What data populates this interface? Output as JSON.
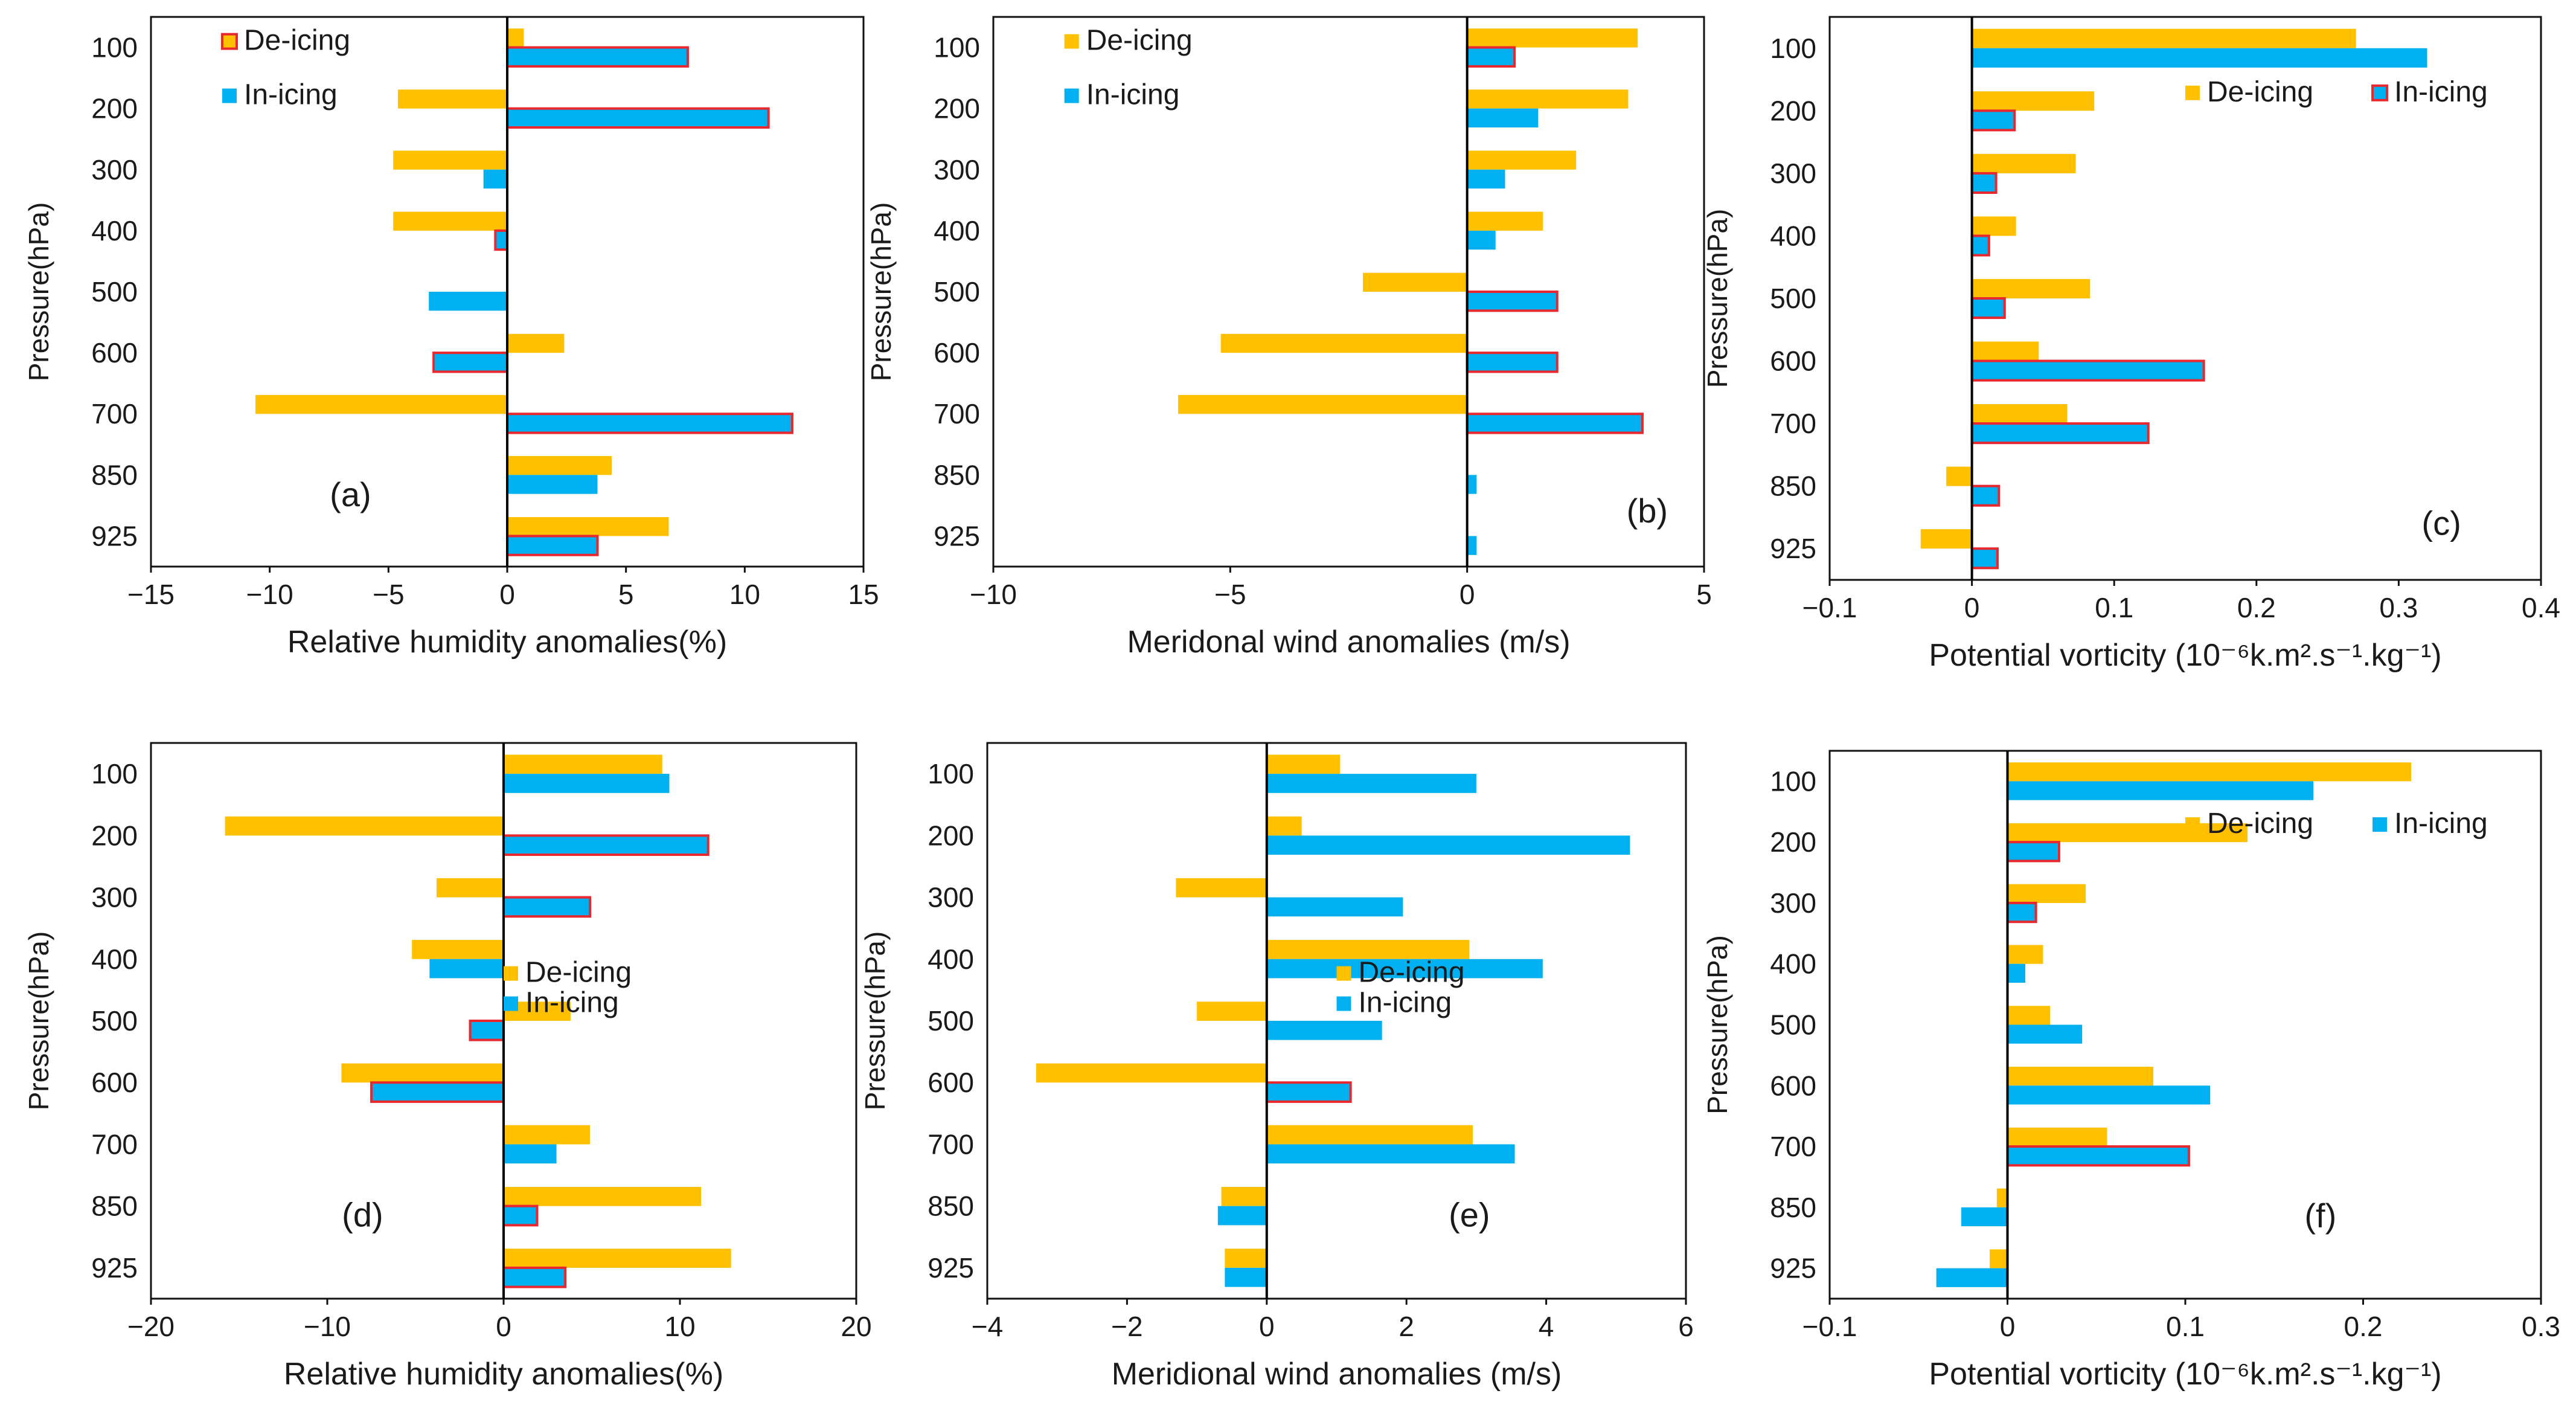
{
  "colors": {
    "de_icing": "#FFC000",
    "in_icing": "#00B0F0",
    "highlight_border": "#E8282E"
  },
  "chart_data": [
    {
      "type": "bar",
      "orientation": "horizontal",
      "panel_label": "(a)",
      "xlabel": "Relative humidity anomalies(%)",
      "ylabel": "Pressure(hPa)",
      "categories": [
        "100",
        "200",
        "300",
        "400",
        "500",
        "600",
        "700",
        "850",
        "925"
      ],
      "xlim": [
        -15,
        15
      ],
      "xticks": [
        -15,
        -10,
        -5,
        0,
        5,
        10,
        15
      ],
      "xtick_labels": [
        "−15",
        "−10",
        "−5",
        "0",
        "5",
        "10",
        "15"
      ],
      "legend_position": "top-left",
      "legend_marker_border": {
        "De-icing": true,
        "In-icing": false
      },
      "series": [
        {
          "name": "De-icing",
          "values": [
            0.7,
            -4.6,
            -4.8,
            -4.8,
            0,
            2.4,
            -10.6,
            4.4,
            6.8
          ],
          "highlight": [
            false,
            false,
            false,
            false,
            false,
            false,
            false,
            false,
            false
          ]
        },
        {
          "name": "In-icing",
          "values": [
            7.6,
            11.0,
            -1.0,
            -0.5,
            -3.3,
            -3.1,
            12.0,
            3.8,
            3.8
          ],
          "highlight": [
            true,
            true,
            false,
            true,
            false,
            true,
            true,
            false,
            true
          ]
        }
      ]
    },
    {
      "type": "bar",
      "orientation": "horizontal",
      "panel_label": "(b)",
      "xlabel": "Meridonal wind anomalies (m/s)",
      "ylabel": "Pressure(hPa)",
      "categories": [
        "100",
        "200",
        "300",
        "400",
        "500",
        "600",
        "700",
        "850",
        "925"
      ],
      "xlim": [
        -10,
        5
      ],
      "xticks": [
        -10,
        -5,
        0,
        5
      ],
      "xtick_labels": [
        "−10",
        "−5",
        "0",
        "5"
      ],
      "legend_position": "top-left",
      "legend_marker_border": {
        "De-icing": false,
        "In-icing": false
      },
      "series": [
        {
          "name": "De-icing",
          "values": [
            3.6,
            3.4,
            2.3,
            1.6,
            -2.2,
            -5.2,
            -6.1,
            0,
            0
          ],
          "highlight": [
            false,
            false,
            false,
            false,
            false,
            false,
            false,
            false,
            false
          ]
        },
        {
          "name": "In-icing",
          "values": [
            1.0,
            1.5,
            0.8,
            0.6,
            1.9,
            1.9,
            3.7,
            0.2,
            0.2
          ],
          "highlight": [
            true,
            false,
            false,
            false,
            true,
            true,
            true,
            false,
            false
          ]
        }
      ]
    },
    {
      "type": "bar",
      "orientation": "horizontal",
      "panel_label": "(c)",
      "xlabel": "Potential vorticity (10⁻⁶k.m².s⁻¹.kg⁻¹)",
      "ylabel": "Pressure(hPa)",
      "categories": [
        "100",
        "200",
        "300",
        "400",
        "500",
        "600",
        "700",
        "850",
        "925"
      ],
      "xlim": [
        -0.1,
        0.4
      ],
      "xticks": [
        -0.1,
        0,
        0.1,
        0.2,
        0.3,
        0.4
      ],
      "xtick_labels": [
        "−0.1",
        "0",
        "0.1",
        "0.2",
        "0.3",
        "0.4"
      ],
      "legend_position": "top-right",
      "legend_marker_border": {
        "De-icing": false,
        "In-icing": true
      },
      "series": [
        {
          "name": "De-icing",
          "values": [
            0.27,
            0.086,
            0.073,
            0.031,
            0.083,
            0.047,
            0.067,
            -0.018,
            -0.036
          ],
          "highlight": [
            false,
            false,
            false,
            false,
            false,
            false,
            false,
            false,
            false
          ]
        },
        {
          "name": "In-icing",
          "values": [
            0.32,
            0.03,
            0.017,
            0.012,
            0.023,
            0.163,
            0.124,
            0.019,
            0.018
          ],
          "highlight": [
            false,
            true,
            true,
            true,
            true,
            true,
            true,
            true,
            true
          ]
        }
      ]
    },
    {
      "type": "bar",
      "orientation": "horizontal",
      "panel_label": "(d)",
      "xlabel": "Relative humidity anomalies(%)",
      "ylabel": "Pressure(hPa)",
      "categories": [
        "100",
        "200",
        "300",
        "400",
        "500",
        "600",
        "700",
        "850",
        "925"
      ],
      "xlim": [
        -20,
        20
      ],
      "xticks": [
        -20,
        -10,
        0,
        10,
        20
      ],
      "xtick_labels": [
        "−20",
        "−10",
        "0",
        "10",
        "20"
      ],
      "legend_position": "center-right",
      "legend_marker_border": {
        "De-icing": false,
        "In-icing": false
      },
      "series": [
        {
          "name": "De-icing",
          "values": [
            9.0,
            -15.8,
            -3.8,
            -5.2,
            3.8,
            -9.2,
            4.9,
            11.2,
            12.9
          ],
          "highlight": [
            false,
            false,
            false,
            false,
            false,
            false,
            false,
            false,
            false
          ]
        },
        {
          "name": "In-icing",
          "values": [
            9.4,
            11.6,
            4.9,
            -4.2,
            -1.9,
            -7.5,
            3.0,
            1.9,
            3.5
          ],
          "highlight": [
            false,
            true,
            true,
            false,
            true,
            true,
            false,
            true,
            true
          ]
        }
      ]
    },
    {
      "type": "bar",
      "orientation": "horizontal",
      "panel_label": "(e)",
      "xlabel": "Meridional wind anomalies (m/s)",
      "ylabel": "Pressure(hPa)",
      "categories": [
        "100",
        "200",
        "300",
        "400",
        "500",
        "600",
        "700",
        "850",
        "925"
      ],
      "xlim": [
        -4,
        6
      ],
      "xticks": [
        -4,
        -2,
        0,
        2,
        4,
        6
      ],
      "xtick_labels": [
        "−4",
        "−2",
        "0",
        "2",
        "4",
        "6"
      ],
      "legend_position": "center-right",
      "legend_marker_border": {
        "De-icing": false,
        "In-icing": false
      },
      "series": [
        {
          "name": "De-icing",
          "values": [
            1.05,
            0.5,
            -1.3,
            2.9,
            -1.0,
            -3.3,
            2.95,
            -0.65,
            -0.6
          ],
          "highlight": [
            false,
            false,
            false,
            false,
            false,
            false,
            false,
            false,
            false
          ]
        },
        {
          "name": "In-icing",
          "values": [
            3.0,
            5.2,
            1.95,
            3.95,
            1.65,
            1.2,
            3.55,
            -0.7,
            -0.6
          ],
          "highlight": [
            false,
            false,
            false,
            false,
            false,
            true,
            false,
            false,
            false
          ]
        }
      ]
    },
    {
      "type": "bar",
      "orientation": "horizontal",
      "panel_label": "(f)",
      "xlabel": "Potential vorticity (10⁻⁶k.m².s⁻¹.kg⁻¹)",
      "ylabel": "Pressure(hPa)",
      "categories": [
        "100",
        "200",
        "300",
        "400",
        "500",
        "600",
        "700",
        "850",
        "925"
      ],
      "xlim": [
        -0.1,
        0.3
      ],
      "xticks": [
        -0.1,
        0,
        0.1,
        0.2,
        0.3
      ],
      "xtick_labels": [
        "−0.1",
        "0",
        "0.1",
        "0.2",
        "0.3"
      ],
      "legend_position": "top-right",
      "legend_marker_border": {
        "De-icing": false,
        "In-icing": false
      },
      "series": [
        {
          "name": "De-icing",
          "values": [
            0.227,
            0.135,
            0.044,
            0.02,
            0.024,
            0.082,
            0.056,
            -0.006,
            -0.01
          ],
          "highlight": [
            false,
            false,
            false,
            false,
            false,
            false,
            false,
            false,
            false
          ]
        },
        {
          "name": "In-icing",
          "values": [
            0.172,
            0.029,
            0.016,
            0.01,
            0.042,
            0.114,
            0.102,
            -0.026,
            -0.04
          ],
          "highlight": [
            false,
            true,
            true,
            false,
            false,
            false,
            true,
            false,
            false
          ]
        }
      ]
    }
  ]
}
